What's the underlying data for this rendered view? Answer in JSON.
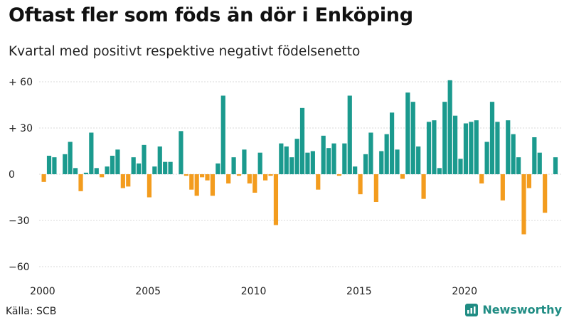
{
  "header": {
    "title": "Oftast fler som föds än dör i Enköping",
    "subtitle": "Kvartal med positivt respektive negativt födelsenetto"
  },
  "footer": {
    "source": "Källa: SCB",
    "brand": "Newsworthy"
  },
  "colors": {
    "positive": "#1b9a8e",
    "negative": "#f39c1e",
    "grid": "#d9d9d9",
    "brand": "#1f8c83"
  },
  "chart_data": {
    "type": "bar",
    "title": "Oftast fler som föds än dör i Enköping",
    "subtitle": "Kvartal med positivt respektive negativt födelsenetto",
    "xlabel": "",
    "ylabel": "",
    "ylim": [
      -60,
      60
    ],
    "yticks": [
      60,
      30,
      0,
      -30,
      -60
    ],
    "ytick_labels": [
      "+ 60",
      "+ 30",
      "0",
      "−30",
      "−60"
    ],
    "xtick_years": [
      2000,
      2005,
      2010,
      2015,
      2020
    ],
    "xtick_labels": [
      "2000",
      "2005",
      "2010",
      "2015",
      "2020"
    ],
    "x_start": "2000 Q1",
    "frequency": "quarterly",
    "grid": true,
    "values": [
      -5,
      12,
      11,
      0,
      13,
      21,
      4,
      -11,
      1,
      27,
      4,
      -2,
      5,
      12,
      16,
      -9,
      -8,
      11,
      7,
      19,
      -15,
      5,
      18,
      8,
      8,
      0,
      28,
      -1,
      -10,
      -14,
      -2,
      -4,
      -14,
      7,
      51,
      -6,
      11,
      -1,
      16,
      -6,
      -12,
      14,
      -4,
      -1,
      -33,
      20,
      18,
      11,
      23,
      43,
      14,
      15,
      -10,
      25,
      17,
      20,
      -1,
      20,
      51,
      5,
      -13,
      13,
      27,
      -18,
      15,
      26,
      40,
      16,
      -3,
      53,
      47,
      18,
      -16,
      34,
      35,
      4,
      47,
      61,
      38,
      10,
      33,
      34,
      35,
      -6,
      21,
      47,
      34,
      -17,
      35,
      26,
      11,
      -39,
      -9,
      24,
      14,
      -25,
      0,
      11
    ]
  }
}
